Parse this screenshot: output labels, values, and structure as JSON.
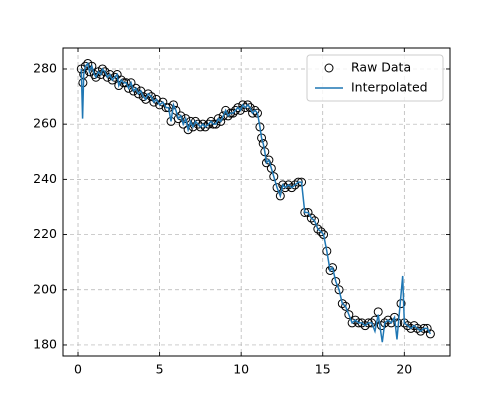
{
  "chart_data": {
    "type": "scatter",
    "xlim": [
      -0.92,
      22.8
    ],
    "ylim": [
      176,
      287.6
    ],
    "xticks": [
      0,
      5,
      10,
      15,
      20
    ],
    "yticks": [
      180,
      200,
      220,
      240,
      260,
      280
    ],
    "grid": true,
    "legend": "upper right",
    "series": [
      {
        "name": "Raw Data",
        "type": "scatter",
        "color": "#000000",
        "x": [
          0.2,
          0.3,
          0.35,
          0.45,
          0.6,
          0.7,
          0.85,
          1.0,
          1.1,
          1.25,
          1.4,
          1.5,
          1.65,
          1.8,
          1.95,
          2.1,
          2.25,
          2.4,
          2.5,
          2.65,
          2.8,
          2.95,
          3.1,
          3.25,
          3.4,
          3.55,
          3.7,
          3.85,
          4.0,
          4.15,
          4.3,
          4.5,
          4.65,
          4.8,
          5.0,
          5.2,
          5.4,
          5.55,
          5.7,
          5.85,
          6.0,
          6.15,
          6.3,
          6.45,
          6.6,
          6.75,
          6.9,
          7.05,
          7.2,
          7.35,
          7.5,
          7.65,
          7.8,
          8.0,
          8.15,
          8.3,
          8.45,
          8.6,
          8.75,
          8.9,
          9.05,
          9.2,
          9.35,
          9.5,
          9.65,
          9.8,
          9.95,
          10.1,
          10.25,
          10.4,
          10.55,
          10.7,
          10.85,
          11.0,
          11.15,
          11.25,
          11.35,
          11.45,
          11.55,
          11.7,
          11.85,
          12.0,
          12.2,
          12.4,
          12.55,
          12.7,
          12.9,
          13.1,
          13.3,
          13.5,
          13.7,
          13.9,
          14.1,
          14.3,
          14.5,
          14.7,
          14.9,
          15.05,
          15.25,
          15.45,
          15.6,
          15.8,
          16.0,
          16.2,
          16.4,
          16.6,
          16.8,
          17.0,
          17.2,
          17.4,
          17.6,
          17.8,
          18.0,
          18.2,
          18.4,
          18.6,
          18.8,
          19.0,
          19.2,
          19.4,
          19.6,
          19.8,
          20.0,
          20.2,
          20.4,
          20.6,
          20.8,
          21.0,
          21.2,
          21.4,
          21.6
        ],
        "y": [
          280,
          275,
          278,
          281,
          282,
          279,
          281,
          278,
          277,
          279,
          278,
          280,
          279,
          277,
          278,
          276,
          277,
          278,
          274,
          276,
          275,
          275,
          273,
          275,
          272,
          273,
          271,
          272,
          270,
          269,
          271,
          270,
          268,
          269,
          267,
          268,
          266,
          266,
          261,
          267,
          265,
          262,
          263,
          260,
          262,
          258,
          261,
          259,
          261,
          260,
          259,
          260,
          259,
          260,
          261,
          260,
          260,
          262,
          261,
          263,
          265,
          263,
          264,
          264,
          265,
          266,
          265,
          267,
          266,
          267,
          266,
          264,
          265,
          264,
          259,
          255,
          253,
          250,
          246,
          247,
          244,
          241,
          237,
          234,
          238,
          237,
          238,
          237,
          238,
          239,
          239,
          228,
          228,
          226,
          225,
          222,
          221,
          220,
          214,
          207,
          208,
          203,
          200,
          195,
          194,
          191,
          188,
          189,
          188,
          188,
          187,
          188,
          188,
          189,
          192,
          187,
          188,
          189,
          188,
          190,
          188,
          195,
          188,
          187,
          186,
          187,
          186,
          185,
          186,
          186,
          184
        ]
      },
      {
        "name": "Interpolated",
        "type": "line",
        "color": "#1f77b4",
        "x": [
          0.2,
          0.28,
          0.35,
          0.45,
          0.6,
          0.7,
          0.85,
          1.0,
          1.1,
          1.25,
          1.4,
          1.5,
          1.65,
          1.8,
          1.95,
          2.1,
          2.25,
          2.4,
          2.5,
          2.65,
          2.8,
          2.95,
          3.1,
          3.25,
          3.4,
          3.55,
          3.7,
          3.85,
          4.0,
          4.15,
          4.3,
          4.5,
          4.65,
          4.8,
          5.0,
          5.2,
          5.4,
          5.55,
          5.7,
          5.85,
          6.0,
          6.15,
          6.3,
          6.45,
          6.6,
          6.75,
          6.9,
          7.05,
          7.2,
          7.35,
          7.5,
          7.65,
          7.8,
          8.0,
          8.15,
          8.3,
          8.45,
          8.6,
          8.75,
          8.9,
          9.05,
          9.2,
          9.35,
          9.5,
          9.65,
          9.8,
          9.95,
          10.1,
          10.25,
          10.4,
          10.55,
          10.7,
          10.85,
          11.0,
          11.15,
          11.25,
          11.35,
          11.45,
          11.55,
          11.7,
          11.85,
          12.0,
          12.2,
          12.4,
          12.55,
          12.7,
          12.9,
          13.1,
          13.3,
          13.5,
          13.7,
          13.9,
          14.1,
          14.3,
          14.5,
          14.7,
          14.9,
          15.05,
          15.25,
          15.45,
          15.6,
          15.8,
          16.0,
          16.2,
          16.4,
          16.6,
          16.8,
          17.0,
          17.2,
          17.4,
          17.6,
          17.8,
          18.0,
          18.2,
          18.4,
          18.65,
          18.8,
          19.0,
          19.2,
          19.4,
          19.55,
          19.9,
          20.0,
          20.2,
          20.4,
          20.6,
          20.8,
          21.0,
          21.2,
          21.4,
          21.6
        ],
        "y": [
          280,
          262,
          278,
          281,
          282,
          279,
          281,
          278,
          277,
          279,
          278,
          280,
          279,
          277,
          278,
          276,
          277,
          278,
          274,
          276,
          275,
          275,
          273,
          275,
          272,
          273,
          271,
          272,
          270,
          269,
          271,
          270,
          268,
          269,
          267,
          268,
          266,
          266,
          261,
          267,
          265,
          262,
          263,
          260,
          262,
          258,
          261,
          259,
          261,
          260,
          259,
          260,
          259,
          260,
          261,
          260,
          260,
          262,
          261,
          263,
          265,
          263,
          264,
          264,
          265,
          266,
          265,
          267,
          266,
          267,
          266,
          264,
          265,
          264,
          259,
          255,
          253,
          250,
          246,
          247,
          244,
          241,
          237,
          234,
          238,
          237,
          238,
          237,
          238,
          239,
          239,
          228,
          228,
          226,
          225,
          222,
          221,
          220,
          214,
          207,
          208,
          203,
          200,
          195,
          194,
          191,
          188,
          189,
          188,
          188,
          187,
          188,
          188,
          185,
          191,
          181,
          188,
          189,
          188,
          190,
          182,
          205,
          188,
          187,
          186,
          187,
          186,
          185,
          186,
          186,
          184
        ]
      }
    ]
  }
}
